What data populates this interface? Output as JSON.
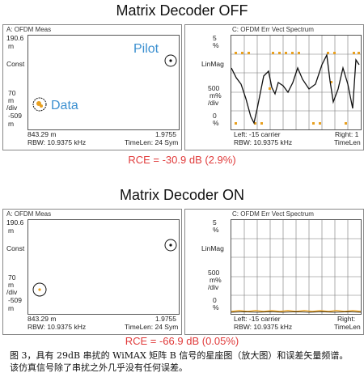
{
  "top": {
    "title": "Matrix Decoder OFF",
    "left": {
      "title": "A: OFDM Meas",
      "y_top": "190.6",
      "y_unit_top": "m",
      "y_mid_label": "Const",
      "y_scale": "70",
      "y_scale_unit1": "m",
      "y_scale_unit2": "/div",
      "y_bottom": "-509",
      "y_unit_bottom": "m",
      "x_left": "843.29 m",
      "x_right": "1.9755",
      "rbw": "RBW: 10.9375 kHz",
      "timelen": "TimeLen: 24  Sym",
      "pilot_label": "Pilot",
      "data_label": "Data"
    },
    "right": {
      "title": "C: OFDM Err Vect Spectrum",
      "y_top": "5",
      "y_unit_top": "%",
      "y_mid_label": "LinMag",
      "y_scale": "500",
      "y_scale_unit1": "m%",
      "y_scale_unit2": "/div",
      "y_bottom": "0",
      "y_unit_bottom": "%",
      "x_left": "Left: -15  carrier",
      "x_right": "Right: 1",
      "timelen": "TimeLen"
    },
    "rce": "RCE = -30.9 dB (2.9%)"
  },
  "bottom": {
    "title": "Matrix Decoder ON",
    "left": {
      "title": "A: OFDM Meas",
      "y_top": "190.6",
      "y_unit_top": "m",
      "y_mid_label": "Const",
      "y_scale": "70",
      "y_scale_unit1": "m",
      "y_scale_unit2": "/div",
      "y_bottom": "-509",
      "y_unit_bottom": "m",
      "x_left": "843.29 m",
      "x_right": "1.9755",
      "rbw": "RBW: 10.9375 kHz",
      "timelen": "TimeLen: 24  Sym"
    },
    "right": {
      "title": "C: OFDM Err Vect Spectrum",
      "y_top": "5",
      "y_unit_top": "%",
      "y_mid_label": "LinMag",
      "y_scale": "500",
      "y_scale_unit1": "m%",
      "y_scale_unit2": "/div",
      "y_bottom": "0",
      "y_unit_bottom": "%",
      "x_left": "Left: -15  carrier",
      "x_right": "Right:",
      "timelen": "TimeLen"
    },
    "rce": "RCE = -66.9 dB (0.05%)"
  },
  "caption": {
    "line1": "图 3，具有 29dB 串扰的 WiMAX 矩阵 B 信号的星座图（放大图）和误差矢量频谱。",
    "line2": "该仿真信号除了串扰之外几乎没有任何误差。"
  },
  "colors": {
    "rce": "#e03a3a",
    "label_blue": "#3a8fd0",
    "trace": "#111111",
    "marker_orange": "#e8a020"
  }
}
